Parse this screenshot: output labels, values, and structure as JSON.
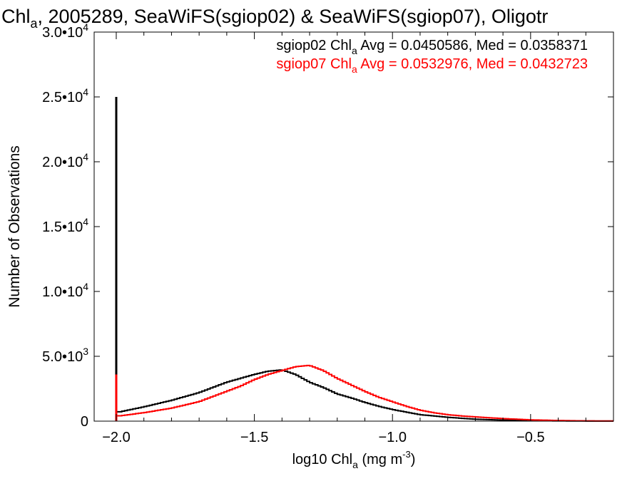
{
  "chart_data": {
    "type": "line",
    "title": {
      "main": "Chl",
      "sub": "a",
      "rest": ", 2005289, SeaWiFS(sgiop02) & SeaWiFS(sgiop07), Oligotr"
    },
    "xlabel": {
      "main": "log10 Chl",
      "sub": "a",
      "rest": " (mg m",
      "sup": "-3",
      "close": ")"
    },
    "ylabel": "Number of Observations",
    "xlim": [
      -2.08,
      -0.2
    ],
    "ylim": [
      0,
      30000
    ],
    "grid": false,
    "legend_position": "top-right",
    "x_ticks": [
      {
        "value": -2.0,
        "label": "−2.0"
      },
      {
        "value": -1.5,
        "label": "−1.5"
      },
      {
        "value": -1.0,
        "label": "−1.0"
      },
      {
        "value": -0.5,
        "label": "−0.5"
      }
    ],
    "y_ticks": [
      {
        "value": 0,
        "mant": "0",
        "exp": ""
      },
      {
        "value": 5000,
        "mant": "5.0•10",
        "exp": "3"
      },
      {
        "value": 10000,
        "mant": "1.0•10",
        "exp": "4"
      },
      {
        "value": 15000,
        "mant": "1.5•10",
        "exp": "4"
      },
      {
        "value": 20000,
        "mant": "2.0•10",
        "exp": "4"
      },
      {
        "value": 25000,
        "mant": "2.5•10",
        "exp": "4"
      },
      {
        "value": 30000,
        "mant": "3.0•10",
        "exp": "4"
      }
    ],
    "series": [
      {
        "color": "#000000",
        "label": {
          "pre": "sgiop02 Chl",
          "sub": "a",
          "post": " Avg = 0.0450586, Med = 0.0358371"
        },
        "spike": {
          "x": -2.0,
          "y": 25000
        },
        "x": [
          -1.99,
          -1.9,
          -1.8,
          -1.7,
          -1.6,
          -1.55,
          -1.5,
          -1.45,
          -1.4,
          -1.35,
          -1.3,
          -1.25,
          -1.2,
          -1.15,
          -1.1,
          -1.05,
          -1.0,
          -0.95,
          -0.9,
          -0.85,
          -0.8,
          -0.75,
          -0.7,
          -0.65,
          -0.6,
          -0.5,
          -0.4,
          -0.3,
          -0.2
        ],
        "y": [
          700,
          1100,
          1600,
          2200,
          3000,
          3300,
          3600,
          3850,
          3950,
          3600,
          3000,
          2600,
          2100,
          1800,
          1450,
          1150,
          900,
          700,
          500,
          400,
          300,
          220,
          150,
          110,
          80,
          40,
          20,
          10,
          5
        ]
      },
      {
        "color": "#ff0000",
        "label": {
          "pre": "sgiop07 Chl",
          "sub": "a",
          "post": " Avg = 0.0532976, Med = 0.0432723"
        },
        "spike": {
          "x": -2.0,
          "y": 3600
        },
        "x": [
          -1.99,
          -1.9,
          -1.8,
          -1.7,
          -1.6,
          -1.55,
          -1.5,
          -1.45,
          -1.4,
          -1.35,
          -1.3,
          -1.25,
          -1.2,
          -1.15,
          -1.1,
          -1.05,
          -1.0,
          -0.95,
          -0.9,
          -0.85,
          -0.8,
          -0.75,
          -0.7,
          -0.65,
          -0.6,
          -0.5,
          -0.4,
          -0.3,
          -0.2
        ],
        "y": [
          400,
          650,
          1000,
          1500,
          2300,
          2700,
          3200,
          3600,
          3900,
          4200,
          4300,
          3900,
          3300,
          2800,
          2300,
          1850,
          1500,
          1150,
          850,
          650,
          500,
          400,
          330,
          260,
          200,
          100,
          50,
          20,
          10
        ]
      }
    ]
  }
}
